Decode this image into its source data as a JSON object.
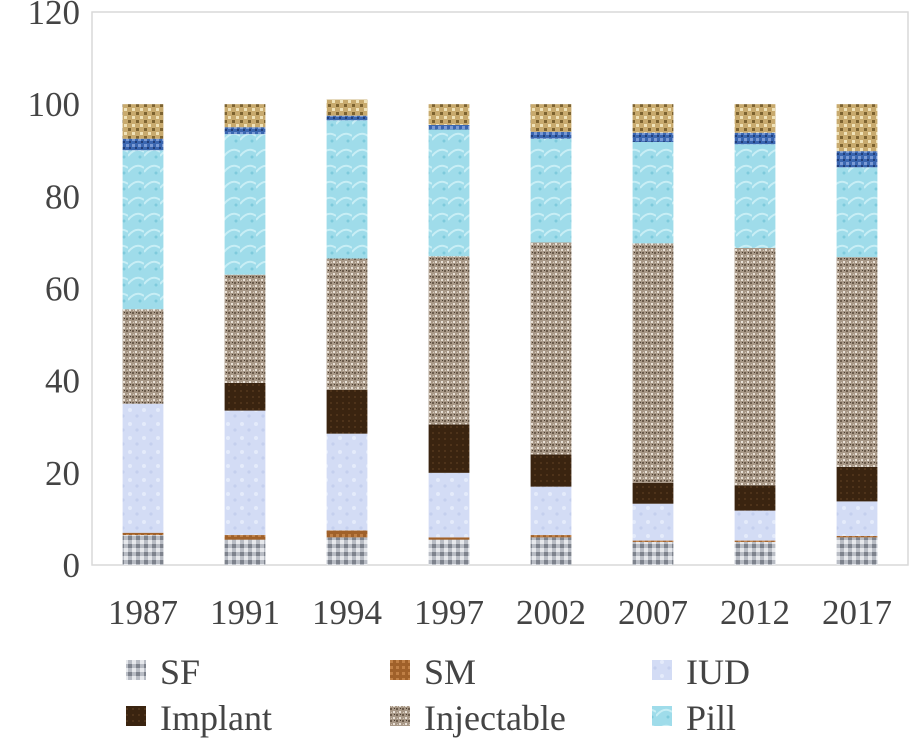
{
  "chart_data": {
    "type": "bar",
    "stacked": true,
    "title": "",
    "xlabel": "",
    "ylabel": "",
    "ylim": [
      0,
      120
    ],
    "yticks": [
      0,
      20,
      40,
      60,
      80,
      100,
      120
    ],
    "grid": false,
    "legend_position": "bottom",
    "categories": [
      "1987",
      "1991",
      "1994",
      "1997",
      "2002",
      "2007",
      "2012",
      "2017"
    ],
    "series": [
      {
        "name": "SF",
        "color": "#b8bcc4",
        "values": [
          6.5,
          5.5,
          6,
          5.5,
          6,
          5,
          5,
          6
        ]
      },
      {
        "name": "SM",
        "color": "#a0612a",
        "values": [
          0.5,
          1,
          1.5,
          0.5,
          0.5,
          0.3,
          0.3,
          0.3
        ]
      },
      {
        "name": "IUD",
        "color": "#d3dcf5",
        "values": [
          28,
          27,
          21,
          14,
          10.5,
          8,
          6.5,
          7.5
        ]
      },
      {
        "name": "Implant",
        "color": "#3a2410",
        "values": [
          0,
          6,
          9.5,
          10.5,
          7,
          4.5,
          5.5,
          7.5
        ]
      },
      {
        "name": "Injectable",
        "color": "#a89887",
        "values": [
          20.5,
          23.5,
          28.5,
          36.5,
          46,
          52,
          51.5,
          45.5
        ]
      },
      {
        "name": "Pill",
        "color": "#9fdcea",
        "values": [
          34.5,
          30.5,
          30,
          27.5,
          22.5,
          22,
          22.5,
          19.5
        ]
      },
      {
        "name": "",
        "color": "#3a66b0",
        "values": [
          2.5,
          1.5,
          1,
          1,
          1.5,
          2,
          2.5,
          3.5
        ]
      },
      {
        "name": "",
        "color": "#c8aa6e",
        "values": [
          7.5,
          5,
          3.5,
          4.5,
          6,
          6.2,
          6.2,
          10.2
        ]
      }
    ]
  }
}
